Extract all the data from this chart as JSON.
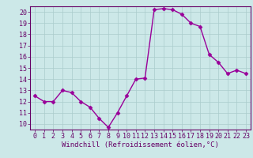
{
  "x": [
    0,
    1,
    2,
    3,
    4,
    5,
    6,
    7,
    8,
    9,
    10,
    11,
    12,
    13,
    14,
    15,
    16,
    17,
    18,
    19,
    20,
    21,
    22,
    23
  ],
  "y": [
    12.5,
    12.0,
    12.0,
    13.0,
    12.8,
    12.0,
    11.5,
    10.5,
    9.7,
    11.0,
    12.5,
    14.0,
    14.1,
    20.2,
    20.3,
    20.2,
    19.8,
    19.0,
    18.7,
    16.2,
    15.5,
    14.5,
    14.8,
    14.5
  ],
  "line_color": "#990099",
  "marker": "D",
  "marker_size": 2.5,
  "linewidth": 1.0,
  "xlabel": "Windchill (Refroidissement éolien,°C)",
  "xlabel_fontsize": 6.5,
  "ylim": [
    9.5,
    20.5
  ],
  "yticks": [
    10,
    11,
    12,
    13,
    14,
    15,
    16,
    17,
    18,
    19,
    20
  ],
  "xlim": [
    -0.5,
    23.5
  ],
  "xticks": [
    0,
    1,
    2,
    3,
    4,
    5,
    6,
    7,
    8,
    9,
    10,
    11,
    12,
    13,
    14,
    15,
    16,
    17,
    18,
    19,
    20,
    21,
    22,
    23
  ],
  "bg_color": "#cce8e8",
  "grid_color": "#aacccc",
  "tick_color": "#660066",
  "tick_fontsize": 6.0,
  "spine_color": "#660066"
}
